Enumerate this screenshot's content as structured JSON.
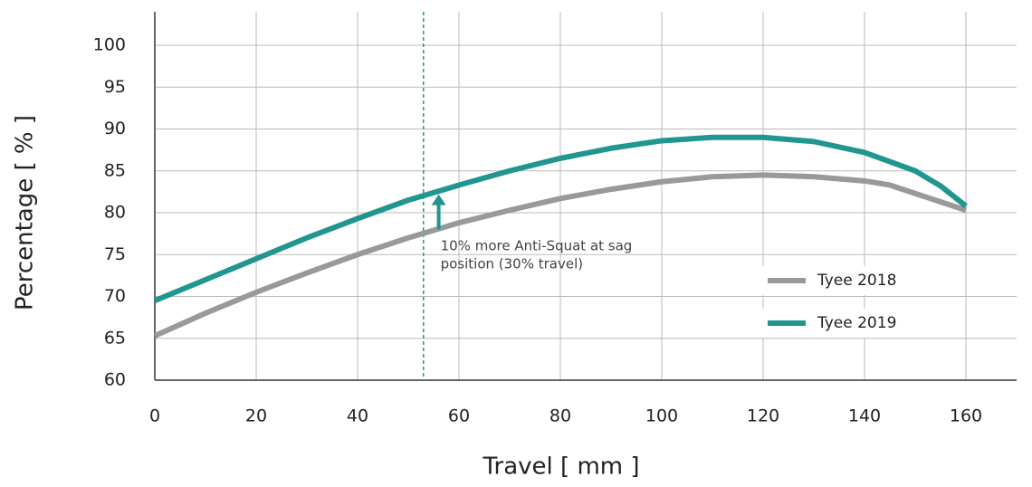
{
  "chart_data": {
    "type": "line",
    "x_label": "Travel [ mm ]",
    "y_label": "Percentage [ % ]",
    "xlim": [
      0,
      170
    ],
    "ylim": [
      60,
      104
    ],
    "xticks": [
      0,
      20,
      40,
      60,
      80,
      100,
      120,
      140,
      160
    ],
    "yticks": [
      60,
      65,
      70,
      75,
      80,
      85,
      90,
      95,
      100
    ],
    "grid": true,
    "legend": "lower right",
    "series": [
      {
        "name": "Tyee 2018",
        "color": "#999999",
        "x": [
          0,
          10,
          20,
          30,
          40,
          50,
          60,
          70,
          80,
          90,
          100,
          110,
          120,
          130,
          140,
          145,
          150,
          155,
          160
        ],
        "values": [
          65.3,
          68,
          70.5,
          72.8,
          75,
          77,
          78.8,
          80.3,
          81.7,
          82.8,
          83.7,
          84.3,
          84.5,
          84.3,
          83.8,
          83.3,
          82.3,
          81.3,
          80.3
        ]
      },
      {
        "name": "Tyee 2019",
        "color": "#21958f",
        "x": [
          0,
          10,
          20,
          30,
          40,
          50,
          60,
          70,
          80,
          90,
          100,
          110,
          120,
          130,
          140,
          150,
          155,
          160
        ],
        "values": [
          69.5,
          72,
          74.5,
          77,
          79.3,
          81.5,
          83.3,
          85,
          86.5,
          87.7,
          88.6,
          89,
          89,
          88.5,
          87.2,
          85,
          83.2,
          80.8
        ]
      }
    ],
    "sag_line": {
      "x": 53,
      "color": "#21958f"
    },
    "arrow": {
      "x": 56,
      "from": 78,
      "to": 82.2,
      "color": "#21958f"
    },
    "annotation": {
      "x": 56,
      "y": 76,
      "lines": [
        "10% more Anti-Squat at sag",
        "position (30% travel)"
      ]
    }
  }
}
